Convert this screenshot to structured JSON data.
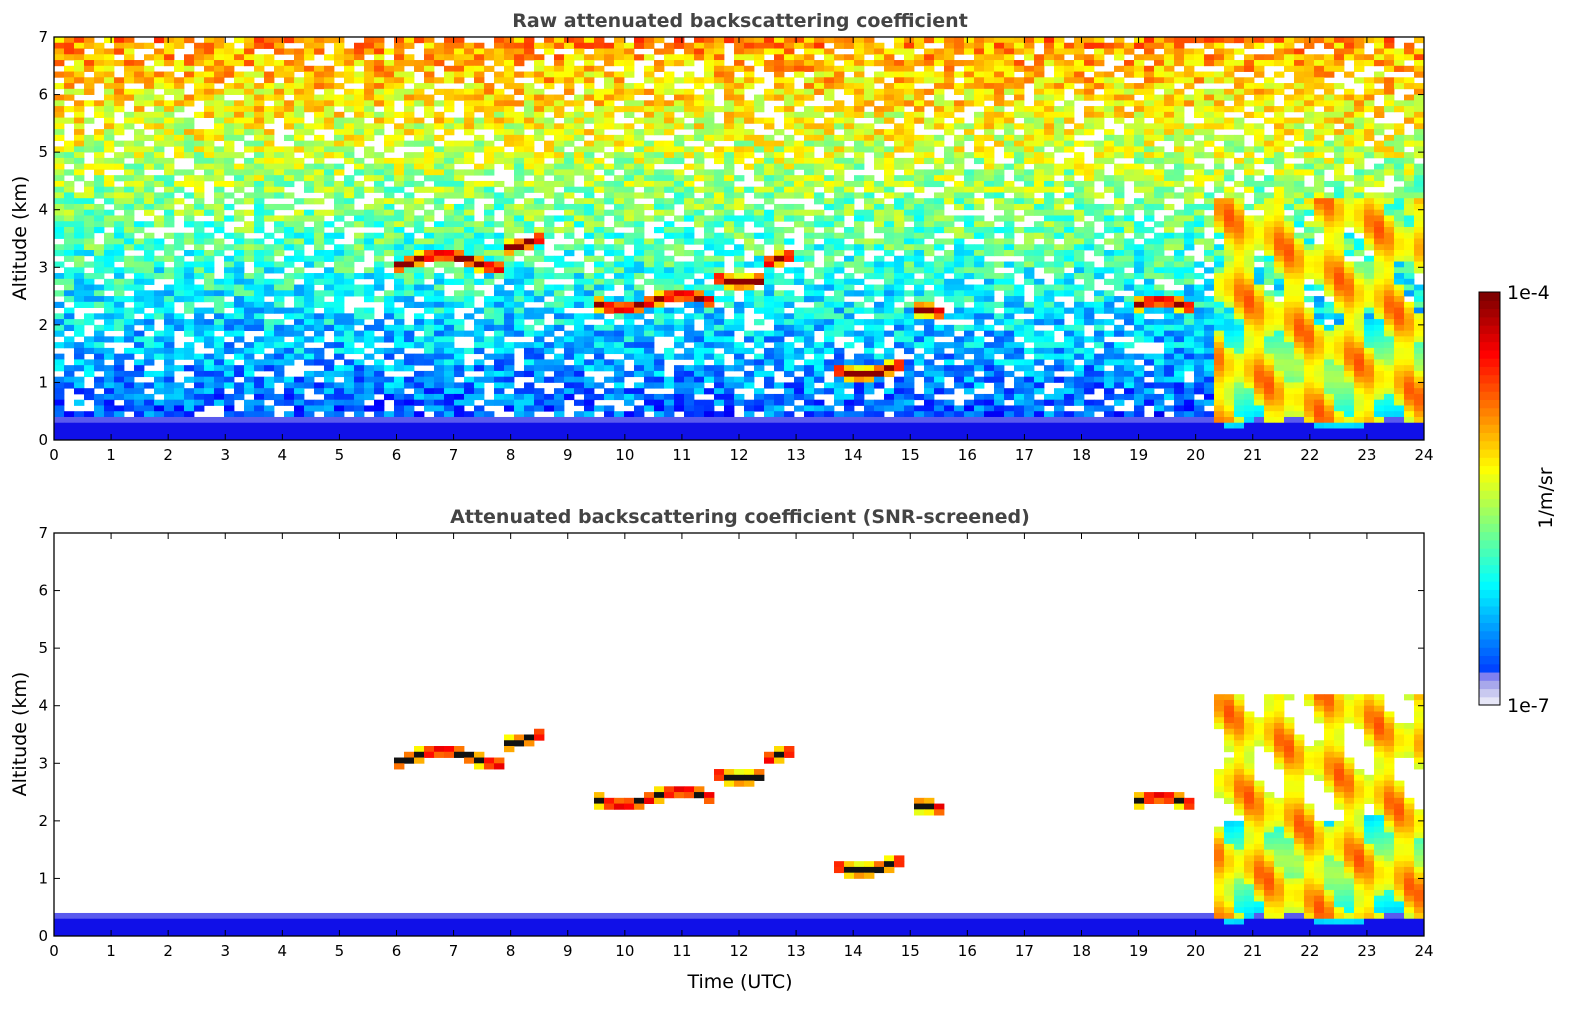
{
  "chart_data": [
    {
      "type": "heatmap",
      "title": "Raw attenuated backscattering coefficient",
      "xlabel": "",
      "ylabel": "Altitude (km)",
      "xlim": [
        0,
        24
      ],
      "ylim": [
        0,
        7
      ],
      "xticks": [
        "0",
        "1",
        "2",
        "3",
        "4",
        "5",
        "6",
        "7",
        "8",
        "9",
        "10",
        "11",
        "12",
        "13",
        "14",
        "15",
        "16",
        "17",
        "18",
        "19",
        "20",
        "21",
        "22",
        "23",
        "24"
      ],
      "yticks": [
        "0",
        "1",
        "2",
        "3",
        "4",
        "5",
        "6",
        "7"
      ],
      "colorbar": {
        "label": "1/m/sr",
        "min_label": "1e-7",
        "max_label": "1e-4",
        "scale": "log",
        "colormap": "jet"
      },
      "features": [
        {
          "t0": 6.0,
          "t1": 7.8,
          "alt": 3.1,
          "level": 1.0
        },
        {
          "t0": 7.8,
          "t1": 8.6,
          "alt": 3.45,
          "level": 1.0
        },
        {
          "t0": 9.5,
          "t1": 11.5,
          "alt": 2.4,
          "level": 1.0
        },
        {
          "t0": 11.5,
          "t1": 12.4,
          "alt": 2.85,
          "level": 1.0
        },
        {
          "t0": 12.4,
          "t1": 13.0,
          "alt": 3.1,
          "level": 1.0
        },
        {
          "t0": 13.7,
          "t1": 14.9,
          "alt": 1.25,
          "level": 1.0
        },
        {
          "t0": 15.0,
          "t1": 15.6,
          "alt": 2.15,
          "level": 1.0
        },
        {
          "t0": 18.9,
          "t1": 19.9,
          "alt": 2.3,
          "level": 1.0
        },
        {
          "t0": 20.5,
          "t1": 24.0,
          "alt": 1.2,
          "level": 0.55
        }
      ]
    },
    {
      "type": "heatmap",
      "title": "Attenuated backscattering coefficient (SNR-screened)",
      "xlabel": "Time (UTC)",
      "ylabel": "Altitude (km)",
      "xlim": [
        0,
        24
      ],
      "ylim": [
        0,
        7
      ],
      "xticks": [
        "0",
        "1",
        "2",
        "3",
        "4",
        "5",
        "6",
        "7",
        "8",
        "9",
        "10",
        "11",
        "12",
        "13",
        "14",
        "15",
        "16",
        "17",
        "18",
        "19",
        "20",
        "21",
        "22",
        "23",
        "24"
      ],
      "yticks": [
        "0",
        "1",
        "2",
        "3",
        "4",
        "5",
        "6",
        "7"
      ],
      "colorbar": {
        "label": "1/m/sr",
        "min_label": "1e-7",
        "max_label": "1e-4",
        "scale": "log",
        "colormap": "jet"
      }
    }
  ]
}
